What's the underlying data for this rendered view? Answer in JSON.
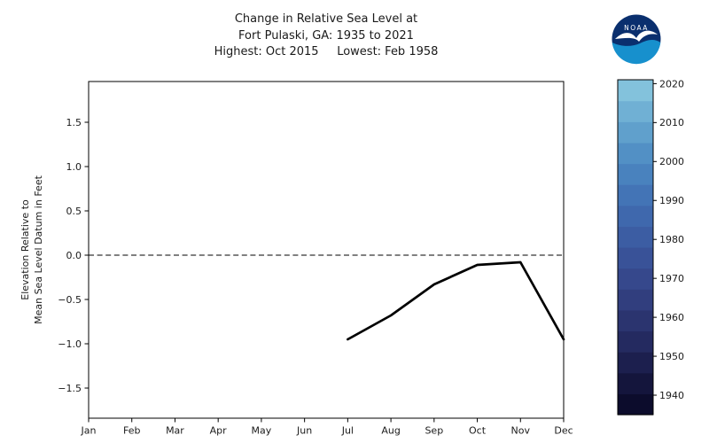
{
  "title": {
    "line1": "Change in Relative Sea Level at",
    "line2": "Fort Pulaski, GA: 1935 to 2021",
    "line3": "Highest: Oct 2015     Lowest: Feb 1958"
  },
  "ylabel": {
    "line1": "Elevation Relative to",
    "line2": "Mean Sea Level Datum in Feet"
  },
  "logo": {
    "text": "NOAA"
  },
  "chart_data": {
    "type": "line",
    "title": "Change in Relative Sea Level at Fort Pulaski, GA: 1935 to 2021",
    "subtitle": "Highest: Oct 2015  Lowest: Feb 1958",
    "xlabel": "",
    "ylabel": "Elevation Relative to Mean Sea Level Datum in Feet",
    "categories": [
      "Jan",
      "Feb",
      "Mar",
      "Apr",
      "May",
      "Jun",
      "Jul",
      "Aug",
      "Sep",
      "Oct",
      "Nov",
      "Dec"
    ],
    "y_ticks": [
      1.5,
      1.0,
      0.5,
      0.0,
      -0.5,
      -1.0,
      -1.5
    ],
    "ylim": [
      -1.84,
      1.96
    ],
    "grid": false,
    "legend": "colorbar-by-year",
    "zero_line": {
      "value": 0.0,
      "style": "dashed",
      "color": "#000000"
    },
    "series": [
      {
        "name": "plotted-monthly-means",
        "color": "#000000",
        "points": [
          {
            "month": "Jul",
            "value": -0.95
          },
          {
            "month": "Aug",
            "value": -0.68
          },
          {
            "month": "Sep",
            "value": -0.33
          },
          {
            "month": "Oct",
            "value": -0.11
          },
          {
            "month": "Nov",
            "value": -0.08
          },
          {
            "month": "Dec",
            "value": -0.95
          }
        ]
      }
    ],
    "colorbar": {
      "year_min": 1935,
      "year_max": 2021,
      "tick_labels": [
        "1940",
        "1950",
        "1960",
        "1970",
        "1980",
        "1990",
        "2000",
        "2010",
        "2020"
      ],
      "colors_bottom_to_top": [
        "#0c0c2c",
        "#14153c",
        "#1c1f4e",
        "#242a60",
        "#2b346f",
        "#313e7e",
        "#36488c",
        "#395298",
        "#3c5da3",
        "#3f68ad",
        "#4374b6",
        "#4982be",
        "#5290c5",
        "#60a0cc",
        "#70b0d4",
        "#83c2dc"
      ]
    }
  }
}
